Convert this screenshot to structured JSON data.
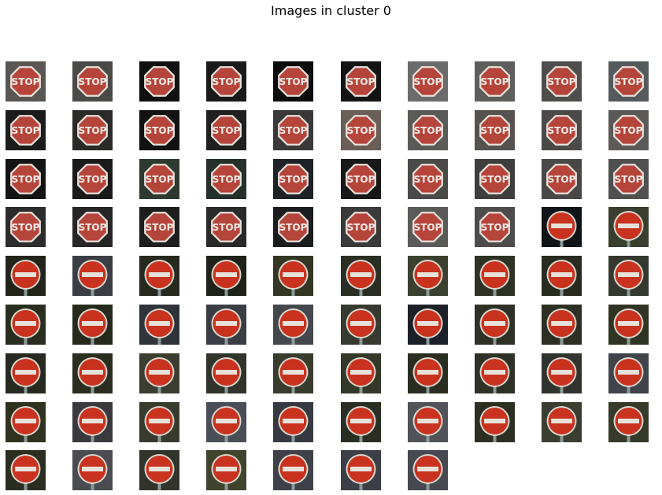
{
  "title": "Images in cluster 0",
  "grid": {
    "columns": 10,
    "total_images": 87
  },
  "images": [
    {
      "type": "stop",
      "bg": "#5a5654"
    },
    {
      "type": "stop",
      "bg": "#4a4a48"
    },
    {
      "type": "stop",
      "bg": "#101010"
    },
    {
      "type": "stop",
      "bg": "#1a1a1a"
    },
    {
      "type": "stop",
      "bg": "#0c0c0c"
    },
    {
      "type": "stop",
      "bg": "#141414"
    },
    {
      "type": "stop",
      "bg": "#6b6b6b"
    },
    {
      "type": "stop",
      "bg": "#5e5e5c"
    },
    {
      "type": "stop",
      "bg": "#4f4e4c"
    },
    {
      "type": "stop",
      "bg": "#555a5c"
    },
    {
      "type": "stop",
      "bg": "#1c1c1c"
    },
    {
      "type": "stop",
      "bg": "#2a2a28"
    },
    {
      "type": "stop",
      "bg": "#121212"
    },
    {
      "type": "stop",
      "bg": "#202020"
    },
    {
      "type": "stop",
      "bg": "#3a3838"
    },
    {
      "type": "stop",
      "bg": "#6a5e58"
    },
    {
      "type": "stop",
      "bg": "#5a5a58"
    },
    {
      "type": "stop",
      "bg": "#55524f"
    },
    {
      "type": "stop",
      "bg": "#4c4a48"
    },
    {
      "type": "stop",
      "bg": "#5c5a58"
    },
    {
      "type": "stop",
      "bg": "#141414"
    },
    {
      "type": "stop",
      "bg": "#1a1a1a"
    },
    {
      "type": "stop",
      "bg": "#2e3a30"
    },
    {
      "type": "stop",
      "bg": "#26302a"
    },
    {
      "type": "stop",
      "bg": "#1e2226"
    },
    {
      "type": "stop",
      "bg": "#181818"
    },
    {
      "type": "stop",
      "bg": "#4a4a48"
    },
    {
      "type": "stop",
      "bg": "#3e3e3c"
    },
    {
      "type": "stop",
      "bg": "#4a4846"
    },
    {
      "type": "stop",
      "bg": "#505050"
    },
    {
      "type": "stop",
      "bg": "#2c2c2c"
    },
    {
      "type": "stop",
      "bg": "#262626"
    },
    {
      "type": "stop",
      "bg": "#1e1e1e"
    },
    {
      "type": "stop",
      "bg": "#2a2a2a"
    },
    {
      "type": "stop",
      "bg": "#1a1c1e"
    },
    {
      "type": "stop",
      "bg": "#3a3a3a"
    },
    {
      "type": "stop",
      "bg": "#5a5a58"
    },
    {
      "type": "stop",
      "bg": "#4e4c4a"
    },
    {
      "type": "noentry",
      "bg": "#101418"
    },
    {
      "type": "noentry",
      "bg": "#3a3e2e"
    },
    {
      "type": "noentry",
      "bg": "#23251c"
    },
    {
      "type": "noentry",
      "bg": "#3a3e44"
    },
    {
      "type": "noentry",
      "bg": "#262a1e"
    },
    {
      "type": "noentry",
      "bg": "#1e2218"
    },
    {
      "type": "noentry",
      "bg": "#323622"
    },
    {
      "type": "noentry",
      "bg": "#2a2e24"
    },
    {
      "type": "noentry",
      "bg": "#3c4030"
    },
    {
      "type": "noentry",
      "bg": "#2e3224"
    },
    {
      "type": "noentry",
      "bg": "#282c20"
    },
    {
      "type": "noentry",
      "bg": "#34382e"
    },
    {
      "type": "noentry",
      "bg": "#2a2e1e"
    },
    {
      "type": "noentry",
      "bg": "#262a1c"
    },
    {
      "type": "noentry",
      "bg": "#30343a"
    },
    {
      "type": "noentry",
      "bg": "#3a3e44"
    },
    {
      "type": "noentry",
      "bg": "#44484c"
    },
    {
      "type": "noentry",
      "bg": "#363a30"
    },
    {
      "type": "noentry",
      "bg": "#1c2028"
    },
    {
      "type": "noentry",
      "bg": "#2e3226"
    },
    {
      "type": "noentry",
      "bg": "#2c3024"
    },
    {
      "type": "noentry",
      "bg": "#303422"
    },
    {
      "type": "noentry",
      "bg": "#262a20"
    },
    {
      "type": "noentry",
      "bg": "#2a2e20"
    },
    {
      "type": "noentry",
      "bg": "#3a3e30"
    },
    {
      "type": "noentry",
      "bg": "#30342a"
    },
    {
      "type": "noentry",
      "bg": "#383c2c"
    },
    {
      "type": "noentry",
      "bg": "#343828"
    },
    {
      "type": "noentry",
      "bg": "#2a2e22"
    },
    {
      "type": "noentry",
      "bg": "#2e3226"
    },
    {
      "type": "noentry",
      "bg": "#30342c"
    },
    {
      "type": "noentry",
      "bg": "#40444a"
    },
    {
      "type": "noentry",
      "bg": "#2e321e"
    },
    {
      "type": "noentry",
      "bg": "#3a3a3e"
    },
    {
      "type": "noentry",
      "bg": "#383c2e"
    },
    {
      "type": "noentry",
      "bg": "#4a4e56"
    },
    {
      "type": "noentry",
      "bg": "#363a40"
    },
    {
      "type": "noentry",
      "bg": "#2a2e24"
    },
    {
      "type": "noentry",
      "bg": "#505458"
    },
    {
      "type": "noentry",
      "bg": "#2c3022"
    },
    {
      "type": "noentry",
      "bg": "#3a3e30"
    },
    {
      "type": "noentry",
      "bg": "#363a2a"
    },
    {
      "type": "noentry",
      "bg": "#2a2e20"
    },
    {
      "type": "noentry",
      "bg": "#4a4c52"
    },
    {
      "type": "noentry",
      "bg": "#30342a"
    },
    {
      "type": "noentry",
      "bg": "#40442e"
    },
    {
      "type": "noentry",
      "bg": "#3e4248"
    },
    {
      "type": "noentry",
      "bg": "#3c4046"
    },
    {
      "type": "noentry",
      "bg": "#464a50"
    }
  ]
}
